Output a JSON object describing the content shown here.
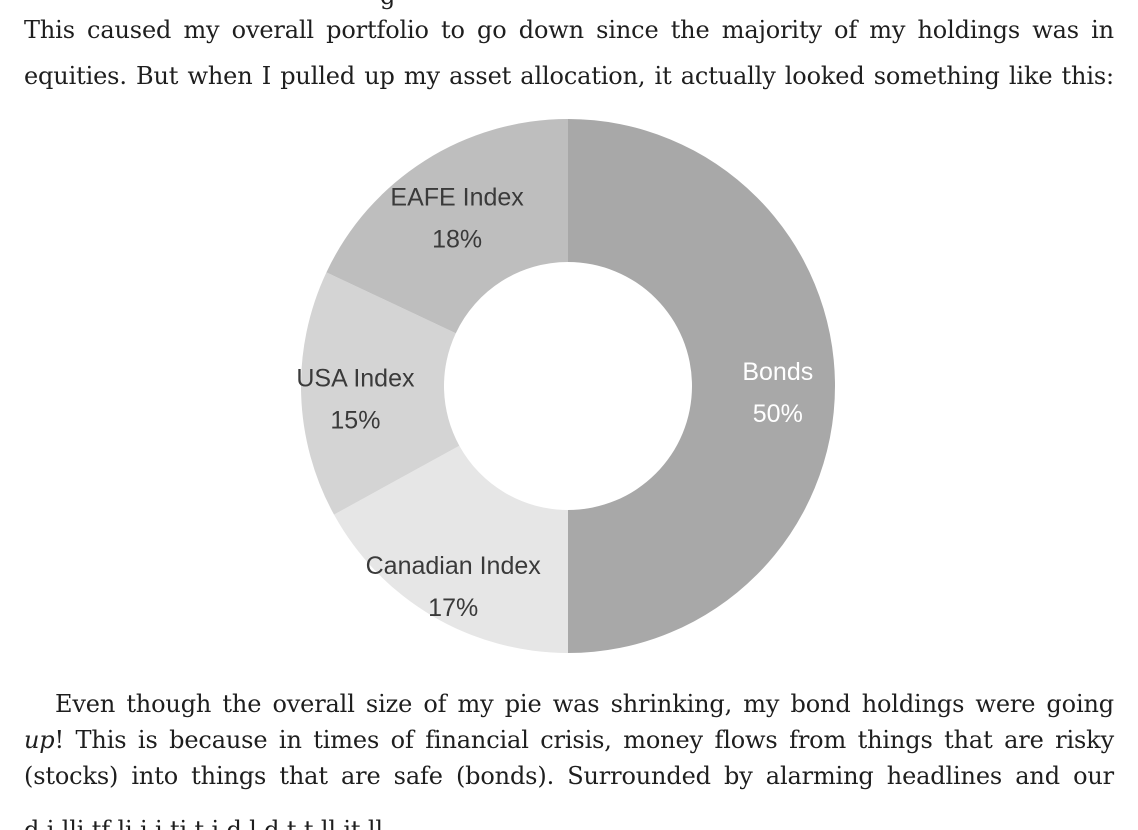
{
  "text_above": {
    "line_0": "g",
    "line_1": "This caused my overall portfolio to go down since the majority of my holdings was in",
    "line_2": "equities. But when I pulled up my asset allocation, it actually looked something like this:"
  },
  "chart_data": {
    "type": "pie",
    "donut": true,
    "title": "",
    "slices": [
      {
        "label": "Bonds",
        "pct_text": "50%",
        "value": 50,
        "color": "#a8a8a8",
        "text_color": "#ffffff"
      },
      {
        "label": "Canadian Index",
        "pct_text": "17%",
        "value": 17,
        "color": "#e6e6e6",
        "text_color": "#3a3a3a"
      },
      {
        "label": "USA Index",
        "pct_text": "15%",
        "value": 15,
        "color": "#d4d4d4",
        "text_color": "#3a3a3a"
      },
      {
        "label": "EAFE Index",
        "pct_text": "18%",
        "value": 18,
        "color": "#bebebe",
        "text_color": "#3a3a3a"
      }
    ]
  },
  "text_below": {
    "line_1": "Even though the overall size of my pie was shrinking, my bond holdings were going",
    "line_2_em": "up",
    "line_2_rest": "! This is because in times of financial crisis, money flows from things that are risky",
    "line_3": "(stocks) into things that are safe (bonds). Surrounded by alarming headlines and our"
  }
}
